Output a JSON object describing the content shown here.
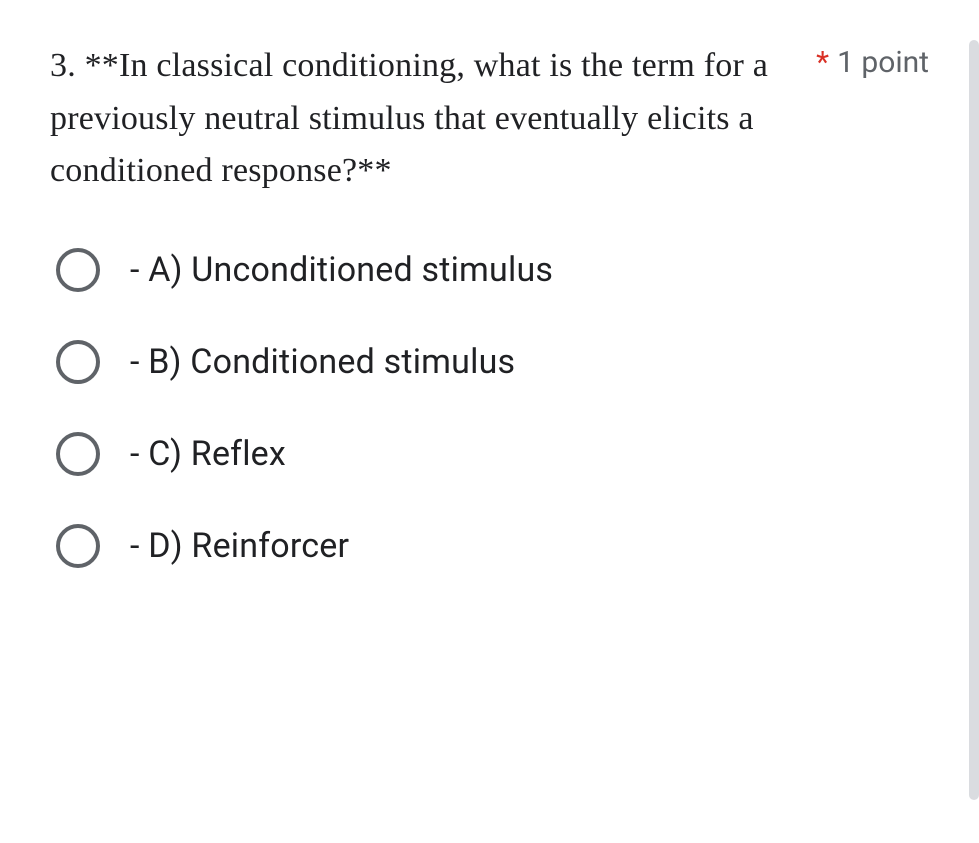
{
  "question": {
    "text": "3. **In classical conditioning, what is the term for a previously neutral stimulus that eventually elicits a conditioned response?**",
    "required_marker": "*",
    "points_label": "1 point"
  },
  "options": [
    {
      "label": "- A) Unconditioned stimulus"
    },
    {
      "label": "- B) Conditioned stimulus"
    },
    {
      "label": "- C) Reflex"
    },
    {
      "label": "- D) Reinforcer"
    }
  ],
  "colors": {
    "text": "#202124",
    "muted": "#5f6368",
    "required": "#d93025",
    "radio_border": "#5f6368",
    "scrollbar": "#dadce0",
    "background": "#ffffff"
  }
}
